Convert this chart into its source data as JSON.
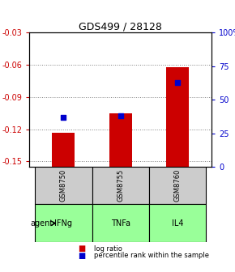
{
  "title": "GDS499 / 28128",
  "categories": [
    "IFNg",
    "TNFa",
    "IL4"
  ],
  "sample_labels": [
    "GSM8750",
    "GSM8755",
    "GSM8760"
  ],
  "log_ratios": [
    -0.123,
    -0.105,
    -0.062
  ],
  "percentile_ranks": [
    37,
    38,
    63
  ],
  "ylim_left": [
    -0.155,
    -0.03
  ],
  "ylim_right": [
    0,
    100
  ],
  "yticks_left": [
    -0.15,
    -0.12,
    -0.09,
    -0.06,
    -0.03
  ],
  "yticks_right": [
    0,
    25,
    50,
    75,
    100
  ],
  "ytick_labels_left": [
    "-0.15",
    "-0.12",
    "-0.09",
    "-0.06",
    "-0.03"
  ],
  "ytick_labels_right": [
    "0",
    "25",
    "50",
    "75",
    "100%"
  ],
  "bar_color": "#cc0000",
  "dot_color": "#0000cc",
  "agent_color": "#99ff99",
  "sample_color": "#cccccc",
  "grid_color": "#808080",
  "left_axis_color": "#cc0000",
  "right_axis_color": "#0000cc",
  "bar_width": 0.4,
  "legend_items": [
    "log ratio",
    "percentile rank within the sample"
  ]
}
